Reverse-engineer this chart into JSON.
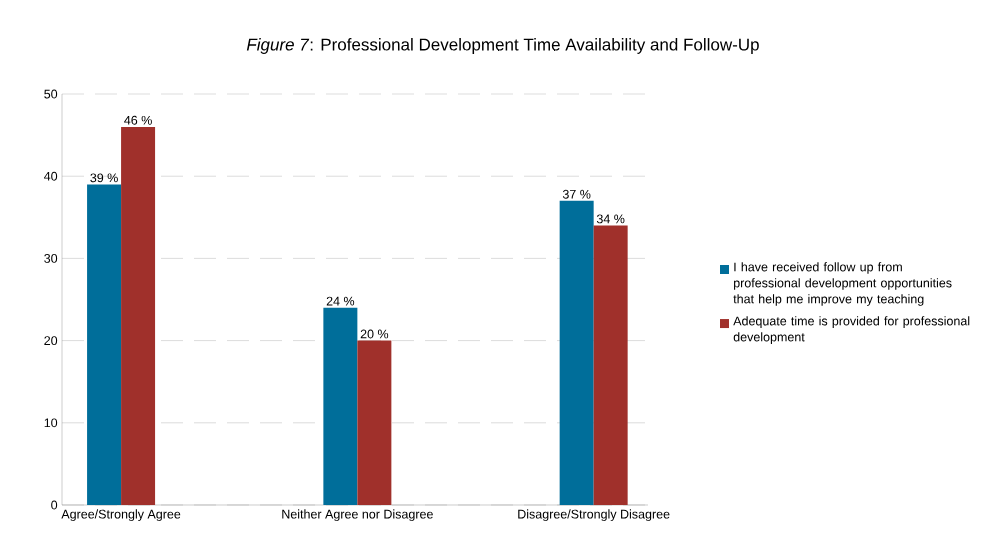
{
  "chart_data": {
    "type": "bar",
    "title": "*Figure 7*: Professional Development Time Availability and Follow-Up",
    "categories": [
      "Agree/Strongly Agree",
      "Neither Agree nor Disagree",
      "Disagree/Strongly Disagree"
    ],
    "series": [
      {
        "name": "I have received follow up from professional development opportunities that help me improve my teaching",
        "color": "#006e9a",
        "values": [
          39,
          24,
          37
        ],
        "value_labels": [
          "39 %",
          "24 %",
          "37 %"
        ]
      },
      {
        "name": "Adequate time is provided for professional development",
        "color": "#a0302b",
        "values": [
          46,
          20,
          34
        ],
        "value_labels": [
          "46 %",
          "20 %",
          "34 %"
        ]
      }
    ],
    "ylim": [
      0,
      50
    ],
    "yticks": [
      0,
      10,
      20,
      30,
      40,
      50
    ],
    "grid": "y",
    "legend": "right"
  }
}
